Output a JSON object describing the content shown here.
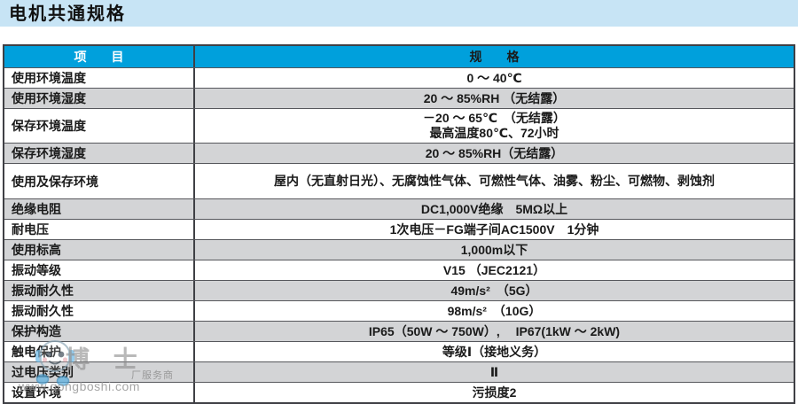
{
  "title": "电机共通规格",
  "table": {
    "header": {
      "item": "项　　目",
      "spec": "规　　格"
    },
    "rows": [
      {
        "item": "使用环境温度",
        "spec": "0 ～ 40℃",
        "shaded": false
      },
      {
        "item": "使用环境湿度",
        "spec": "20 ～ 85%RH （无结露）",
        "shaded": true
      },
      {
        "item": "保存环境温度",
        "spec": "－20 ～ 65℃　（无结露）",
        "spec2": "最高温度80℃、72小时",
        "shaded": false
      },
      {
        "item": "保存环境湿度",
        "spec": "20 ～ 85%RH（无结露）",
        "shaded": true
      },
      {
        "item": "使用及保存环境",
        "spec": "屋内（无直射日光）、无腐蚀性气体、可燃性气体、油雾、粉尘、可燃物、剥蚀剂",
        "shaded": false
      },
      {
        "item": "绝缘电阻",
        "spec": "DC1,000V绝缘　5MΩ以上",
        "shaded": true
      },
      {
        "item": "耐电压",
        "spec": "1次电压－FG端子间AC1500V　1分钟",
        "shaded": false
      },
      {
        "item": "使用标高",
        "spec": "1,000m以下",
        "shaded": true
      },
      {
        "item": "振动等级",
        "spec": "V15 （JEC2121）",
        "shaded": false
      },
      {
        "item": "振动耐久性",
        "spec": "49m/s²　（5G）",
        "shaded": true
      },
      {
        "item": "振动耐久性",
        "spec": "98m/s²　（10G）",
        "shaded": false
      },
      {
        "item": "保护构造",
        "spec": "IP65（50W ～ 750W）,　 IP67(1kW ～ 2kW)",
        "shaded": true
      },
      {
        "item": "触电保护",
        "spec": "等级Ⅰ（接地义务）",
        "shaded": false
      },
      {
        "item": "过电压类别",
        "spec": "Ⅱ",
        "shaded": true
      },
      {
        "item": "设置环境",
        "spec": "污损度2",
        "shaded": false
      }
    ]
  },
  "watermark": {
    "mascot_icon": "robot-mascot-icon",
    "brand": "博 士",
    "tagline": "厂服务商",
    "url": "www.gongboshi.com"
  },
  "colors": {
    "band": "#c7e4f5",
    "header": "#00a0dc",
    "shaded": "#d3d4d6",
    "border": "#56575c",
    "text": "#1a1a1a"
  }
}
